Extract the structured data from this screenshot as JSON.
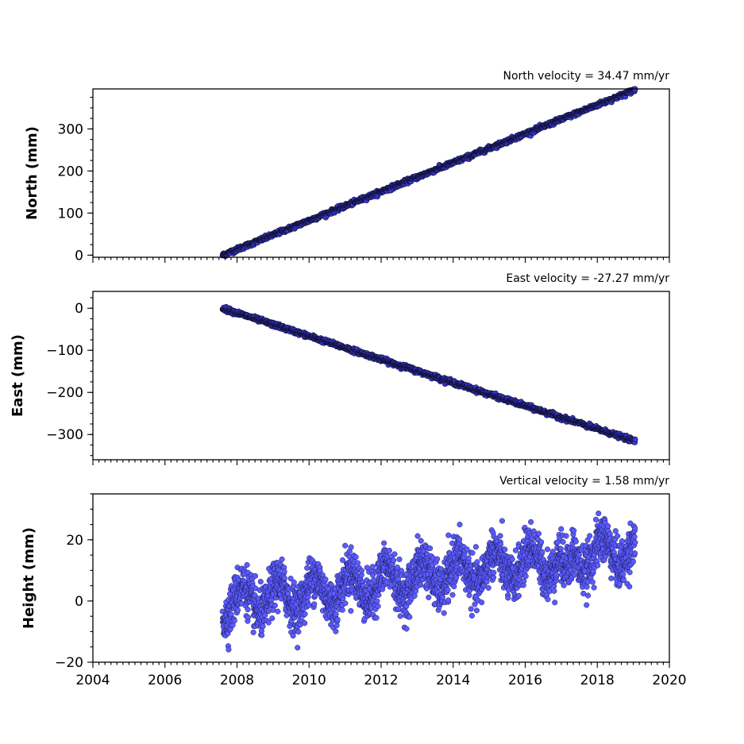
{
  "chart_data": [
    {
      "type": "scatter",
      "title": "North velocity = 34.47 mm/yr",
      "ylabel": "North (mm)",
      "xlim": [
        2004,
        2020
      ],
      "ylim": [
        -5,
        395
      ],
      "yticks": [
        0,
        100,
        200,
        300
      ],
      "x_range": [
        2007.6,
        2019.05
      ],
      "trend": {
        "slope_mm_per_yr": 34.47,
        "start": [
          2007.6,
          0
        ],
        "end": [
          2019.05,
          393
        ]
      },
      "noise_mm": 2.5,
      "color": "#5b5bff",
      "show_xticklabels": false
    },
    {
      "type": "scatter",
      "title": "East velocity = -27.27 mm/yr",
      "ylabel": "East (mm)",
      "xlim": [
        2004,
        2020
      ],
      "ylim": [
        -360,
        40
      ],
      "yticks": [
        0,
        -100,
        -200,
        -300
      ],
      "ytick_labels": [
        "0",
        "−100",
        "−200",
        "−300"
      ],
      "x_range": [
        2007.6,
        2019.05
      ],
      "trend": {
        "slope_mm_per_yr": -27.27,
        "start": [
          2007.6,
          0
        ],
        "end": [
          2019.05,
          -316
        ]
      },
      "noise_mm": 2.5,
      "color": "#5b5bff",
      "show_xticklabels": false
    },
    {
      "type": "scatter",
      "title": "Vertical velocity = 1.58 mm/yr",
      "ylabel": "Height (mm)",
      "xlim": [
        2004,
        2020
      ],
      "ylim": [
        -20,
        35
      ],
      "yticks": [
        20,
        0,
        -20
      ],
      "ytick_labels": [
        "20",
        "0",
        "−20"
      ],
      "xticks": [
        2004,
        2006,
        2008,
        2010,
        2012,
        2014,
        2016,
        2018,
        2020
      ],
      "xtick_labels": [
        "2004",
        "2006",
        "2008",
        "2010",
        "2012",
        "2014",
        "2016",
        "2018",
        "2020"
      ],
      "x_range": [
        2007.6,
        2019.05
      ],
      "trend": {
        "slope_mm_per_yr": 1.58
      },
      "color": "#5b5bff",
      "show_xticklabels": true
    }
  ]
}
